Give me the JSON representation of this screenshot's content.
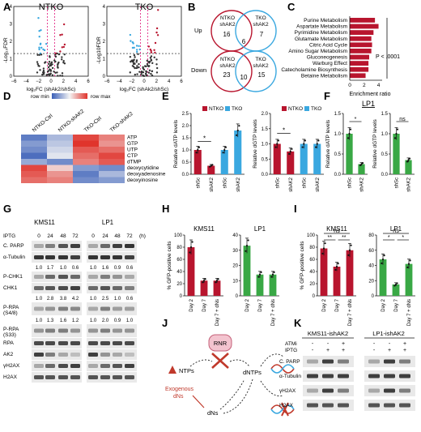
{
  "panels": {
    "A": "A",
    "B": "B",
    "C": "C",
    "D": "D",
    "E": "E",
    "F": "F",
    "G": "G",
    "H": "H",
    "I": "I",
    "J": "J",
    "K": "K"
  },
  "colors": {
    "ntko": "#b8152e",
    "tko": "#3aa8e0",
    "lp1": "#39a845",
    "grey": "#444444"
  },
  "panelA": {
    "titles": [
      "NTKO",
      "TKO"
    ],
    "xlabel": "log₂FC (shAk2/shSc)",
    "ylabels": [
      "-Log₁₀FDR",
      "-Log10FDR"
    ],
    "xticks": [
      "−6",
      "−4",
      "−2",
      "0",
      "2",
      "4",
      "6"
    ],
    "yticks": [
      "0",
      "1",
      "2",
      "3",
      "4"
    ]
  },
  "panelB": {
    "rows": [
      {
        "label": "Up",
        "left": "NTKO\nshAK2",
        "right": "TKO\nshAK2",
        "a": "16",
        "mid": "6",
        "b": "7"
      },
      {
        "label": "Down",
        "left": "NTKO\nshAK2",
        "right": "TKO\nshAK2",
        "a": "23",
        "mid": "10",
        "b": "15"
      }
    ]
  },
  "panelC": {
    "chart_data": {
      "type": "bar",
      "categories": [
        "Purine Metabolism",
        "Aspartate Metabolism",
        "Pyrimidine Metabolism",
        "Glutamate Metabolism",
        "Citric Acid Cycle",
        "Amino Sugar Metabolism",
        "Gluconeogenesis",
        "Warburg Effect",
        "Catecholamine Biosynthesis",
        "Betaine Metabolism"
      ],
      "values": [
        3.5,
        4.0,
        3.3,
        3.0,
        3.1,
        3.0,
        2.7,
        2.6,
        2.6,
        2.2
      ],
      "xlabel": "Enrichment ratio",
      "xticks": [
        "0",
        "2",
        "4"
      ],
      "xlim": [
        0,
        4.5
      ]
    },
    "pval": "P < .0001"
  },
  "panelD": {
    "legend_min": "row min",
    "legend_max": "row max",
    "cols": [
      "NTKO-Ctrl",
      "NTKO-shAK2",
      "TKO-Ctrl",
      "TKO-shAK2"
    ],
    "rows": [
      "ATP",
      "GTP",
      "UTP",
      "CTP",
      "dTMP",
      "deoxycytidine",
      "deoxyadenosine",
      "deoxyinosine"
    ]
  },
  "panelE": {
    "chart_data": [
      {
        "type": "bar",
        "ylabel": "Relative dATP levels",
        "categories": [
          "shSc",
          "shAK2",
          "shSc",
          "shAK2"
        ],
        "groups": [
          "NTKO",
          "NTKO",
          "TKO",
          "TKO"
        ],
        "values": [
          1.0,
          0.35,
          1.0,
          1.8
        ],
        "ylim": [
          0,
          2.5
        ],
        "yticks": [
          "0.0",
          "0.5",
          "1.0",
          "1.5",
          "2.0",
          "2.5"
        ],
        "legend": [
          "NTKO",
          "TKO"
        ],
        "sig": "*"
      },
      {
        "type": "bar",
        "ylabel": "Relative dGTP levels",
        "categories": [
          "shSc",
          "shAK2",
          "shSc",
          "shAK2"
        ],
        "groups": [
          "NTKO",
          "NTKO",
          "TKO",
          "TKO"
        ],
        "values": [
          1.0,
          0.75,
          1.0,
          1.0
        ],
        "ylim": [
          0,
          2.0
        ],
        "yticks": [
          "0.0",
          "0.5",
          "1.0",
          "1.5",
          "2.0"
        ],
        "legend": [
          "NTKO",
          "TKO"
        ],
        "sig": "*"
      }
    ]
  },
  "panelF": {
    "title": "LP1",
    "chart_data": [
      {
        "type": "bar",
        "ylabel": "Relative dATP levels",
        "categories": [
          "shSc",
          "shAK2"
        ],
        "values": [
          1.0,
          0.25
        ],
        "ylim": [
          0,
          1.5
        ],
        "yticks": [
          "0.0",
          "0.5",
          "1.0",
          "1.5"
        ],
        "sig": "*"
      },
      {
        "type": "bar",
        "ylabel": "Relative dGTP levels",
        "categories": [
          "shSc",
          "shAK2"
        ],
        "values": [
          1.0,
          0.35
        ],
        "ylim": [
          0,
          1.5
        ],
        "yticks": [
          "0.0",
          "0.5",
          "1.0",
          "1.5"
        ],
        "sig": "ns"
      }
    ]
  },
  "panelG": {
    "cell_lines": [
      "KMS11",
      "LP1"
    ],
    "iptg": "IPTG",
    "times": [
      "0",
      "24",
      "48",
      "72",
      "0",
      "24",
      "48",
      "72"
    ],
    "unit": "(h)",
    "blots": [
      {
        "label": "C. PARP",
        "quant": null
      },
      {
        "label": "α-Tubulin",
        "quant": [
          "1.0",
          "1.7",
          "1.0",
          "0.6",
          "1.0",
          "1.6",
          "0.9",
          "0.6"
        ]
      },
      {
        "label": "P-CHK1",
        "quant": null
      },
      {
        "label": "CHK1",
        "quant": [
          "1.0",
          "2.8",
          "3.8",
          "4.2",
          "1.0",
          "2.5",
          "1.0",
          "0.6"
        ]
      },
      {
        "label": "P-RPA\n(S4/8)",
        "quant": [
          "1.0",
          "1.3",
          "1.6",
          "1.2",
          "1.0",
          "2.0",
          "0.9",
          "1.0"
        ]
      },
      {
        "label": "P-RPA\n(S33)",
        "quant": null
      },
      {
        "label": "RPA",
        "quant": null
      },
      {
        "label": "AK2",
        "quant": null
      },
      {
        "label": "γH2AX",
        "quant": null
      },
      {
        "label": "H2AX",
        "quant": null
      }
    ]
  },
  "panelH": {
    "ylabel": "% GFP-positive cells",
    "chart_data": [
      {
        "type": "bar",
        "title": "KMS11",
        "categories": [
          "Day 2",
          "Day 7",
          "Day 7 + dNs"
        ],
        "values": [
          80,
          25,
          25
        ],
        "ylim": [
          0,
          100
        ],
        "yticks": [
          "0",
          "20",
          "40",
          "60",
          "80",
          "100"
        ]
      },
      {
        "type": "bar",
        "title": "LP1",
        "categories": [
          "Day 2",
          "Day 7",
          "Day 7 + dNs"
        ],
        "values": [
          33,
          14,
          14
        ],
        "ylim": [
          0,
          40
        ],
        "yticks": [
          "0",
          "10",
          "20",
          "30",
          "40"
        ]
      }
    ]
  },
  "panelI": {
    "ylabel": "% GFP-positive cells",
    "chart_data": [
      {
        "type": "bar",
        "title": "KMS11",
        "categories": [
          "Day 2",
          "Day 7",
          "Day 7 + dNs"
        ],
        "values": [
          78,
          48,
          75
        ],
        "ylim": [
          0,
          100
        ],
        "yticks": [
          "0",
          "20",
          "40",
          "60",
          "80",
          "100"
        ],
        "sig": [
          "**",
          "**",
          "ns"
        ]
      },
      {
        "type": "bar",
        "title": "LP1",
        "categories": [
          "Day 2",
          "Day 7",
          "Day 7 + dNs"
        ],
        "values": [
          48,
          15,
          42
        ],
        "ylim": [
          0,
          80
        ],
        "yticks": [
          "0",
          "20",
          "40",
          "60",
          "80"
        ],
        "sig": [
          "*",
          "*",
          "ns"
        ]
      }
    ]
  },
  "panelJ": {
    "rnr": "RNR",
    "ntps": "NTPs",
    "dntps": "dNTPs",
    "dns": "dNs",
    "exog": "Exogenous\ndNs"
  },
  "panelK": {
    "groups": [
      "KMS11-ishAK2",
      "LP1-ishAK2"
    ],
    "treat": [
      "ATMi",
      "IPTG"
    ],
    "signs": [
      [
        "-",
        "-",
        "+"
      ],
      [
        "-",
        "+",
        "+"
      ],
      [
        "-",
        "-",
        "+"
      ],
      [
        "-",
        "+",
        "+"
      ]
    ],
    "blots": [
      "C. PARP",
      "α-Tubulin",
      "γH2AX",
      "H2AX"
    ]
  }
}
